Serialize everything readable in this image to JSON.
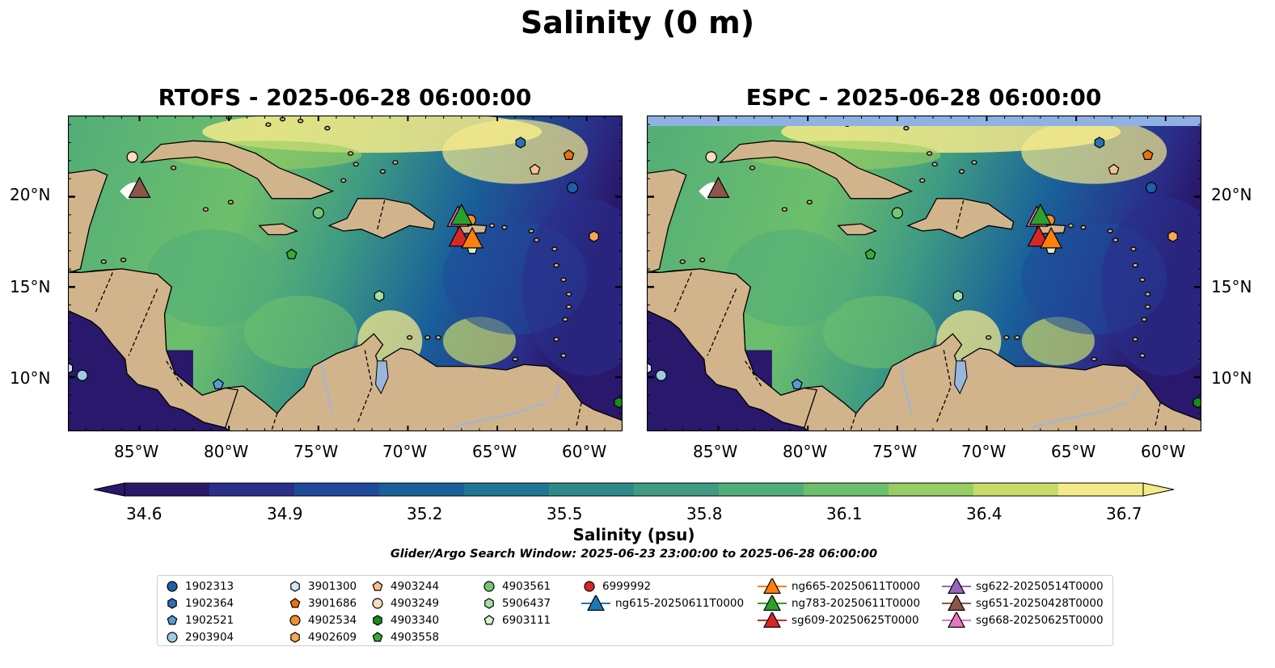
{
  "suptitle": "Salinity (0 m)",
  "panels": [
    {
      "title": "RTOFS - 2025-06-28 06:00:00",
      "model": "RTOFS",
      "has_missing_band": false
    },
    {
      "title": "ESPC - 2025-06-28 06:00:00",
      "model": "ESPC",
      "has_missing_band": true
    }
  ],
  "map_extent": {
    "lon_min": -89,
    "lon_max": -58,
    "lat_min": 7,
    "lat_max": 24.5
  },
  "lon_ticks": [
    "85°W",
    "80°W",
    "75°W",
    "70°W",
    "65°W",
    "60°W"
  ],
  "lat_ticks": [
    "20°N",
    "15°N",
    "10°N"
  ],
  "colors": {
    "land": "#d2b48c",
    "lake": "#9bb6dd",
    "missing": "#8fb1e3",
    "colormap": [
      "#29186b",
      "#2a2f8a",
      "#1f4a9a",
      "#19609a",
      "#1f7693",
      "#2e8a89",
      "#3f9b82",
      "#52ae78",
      "#6dbf6c",
      "#98cd63",
      "#c7dc6b",
      "#f5ea8a"
    ]
  },
  "colorbar": {
    "min": 34.6,
    "max": 36.7,
    "ticks": [
      "34.6",
      "34.9",
      "35.2",
      "35.5",
      "35.8",
      "36.1",
      "36.4",
      "36.7"
    ],
    "label": "Salinity (psu)"
  },
  "search_window": "Glider/Argo Search Window: 2025-06-23 23:00:00 to 2025-06-28 06:00:00",
  "legend": [
    {
      "label": "1902313",
      "marker": "circle",
      "color": "#1f5fa8"
    },
    {
      "label": "1902364",
      "marker": "hexagon",
      "color": "#2e6fb5"
    },
    {
      "label": "1902521",
      "marker": "pentagon",
      "color": "#5a9ad6"
    },
    {
      "label": "2903904",
      "marker": "circle",
      "color": "#9ecae1"
    },
    {
      "label": "3901300",
      "marker": "hexagon",
      "color": "#cfe6f5"
    },
    {
      "label": "3901686",
      "marker": "pentagon",
      "color": "#e8710a"
    },
    {
      "label": "4902534",
      "marker": "circle",
      "color": "#f28e2b"
    },
    {
      "label": "4902609",
      "marker": "hexagon",
      "color": "#f6a55a"
    },
    {
      "label": "4903244",
      "marker": "pentagon",
      "color": "#f8c08e"
    },
    {
      "label": "4903249",
      "marker": "circle",
      "color": "#fcdcc0"
    },
    {
      "label": "4903340",
      "marker": "hexagon",
      "color": "#1a8a1a"
    },
    {
      "label": "4903558",
      "marker": "pentagon",
      "color": "#3aa83a"
    },
    {
      "label": "4903561",
      "marker": "circle",
      "color": "#72c872"
    },
    {
      "label": "5906437",
      "marker": "hexagon",
      "color": "#a6e0a0"
    },
    {
      "label": "6903111",
      "marker": "pentagon",
      "color": "#d6f2c9"
    },
    {
      "label": "6999992",
      "marker": "circle",
      "color": "#d62728"
    },
    {
      "label": "ng615-20250611T0000",
      "marker": "triangle",
      "color": "#1f77b4"
    },
    {
      "label": "ng665-20250611T0000",
      "marker": "triangle",
      "color": "#ff7f0e"
    },
    {
      "label": "ng783-20250611T0000",
      "marker": "triangle",
      "color": "#2ca02c"
    },
    {
      "label": "sg609-20250625T0000",
      "marker": "triangle",
      "color": "#d62728"
    },
    {
      "label": "sg622-20250514T0000",
      "marker": "triangle",
      "color": "#9467bd"
    },
    {
      "label": "sg651-20250428T0000",
      "marker": "triangle",
      "color": "#8c564b"
    },
    {
      "label": "sg668-20250625T0000",
      "marker": "triangle",
      "color": "#e377c2"
    }
  ],
  "observations": [
    {
      "id": "1902313",
      "lon": -60.8,
      "lat": 20.5
    },
    {
      "id": "1902364",
      "lon": -63.7,
      "lat": 23.0
    },
    {
      "id": "1902521",
      "lon": -80.6,
      "lat": 9.6
    },
    {
      "id": "2903904",
      "lon": -88.2,
      "lat": 10.1
    },
    {
      "id": "3901300",
      "lon": -89.0,
      "lat": 10.5
    },
    {
      "id": "3901686",
      "lon": -61.0,
      "lat": 22.3
    },
    {
      "id": "4902534",
      "lon": -66.5,
      "lat": 18.7
    },
    {
      "id": "4902609",
      "lon": -59.6,
      "lat": 17.8
    },
    {
      "id": "4903244",
      "lon": -62.9,
      "lat": 21.5
    },
    {
      "id": "4903249",
      "lon": -85.4,
      "lat": 22.2
    },
    {
      "id": "4903340",
      "lon": -58.2,
      "lat": 8.6
    },
    {
      "id": "4903558",
      "lon": -76.5,
      "lat": 16.8
    },
    {
      "id": "4903561",
      "lon": -75.0,
      "lat": 19.1
    },
    {
      "id": "5906437",
      "lon": -71.6,
      "lat": 14.5
    },
    {
      "id": "6903111",
      "lon": -66.4,
      "lat": 17.1
    },
    {
      "id": "sg651-20250428T0000",
      "lon": -85.0,
      "lat": 20.4,
      "glider": true
    },
    {
      "id": "sg668-20250625T0000",
      "lon": -67.2,
      "lat": 18.8,
      "glider": true
    },
    {
      "id": "ng783-20250611T0000",
      "lon": -67.0,
      "lat": 18.9,
      "glider": true
    },
    {
      "id": "sg609-20250625T0000",
      "lon": -67.1,
      "lat": 17.7,
      "glider": true
    },
    {
      "id": "ng665-20250611T0000",
      "lon": -66.4,
      "lat": 17.6,
      "glider": true
    }
  ]
}
